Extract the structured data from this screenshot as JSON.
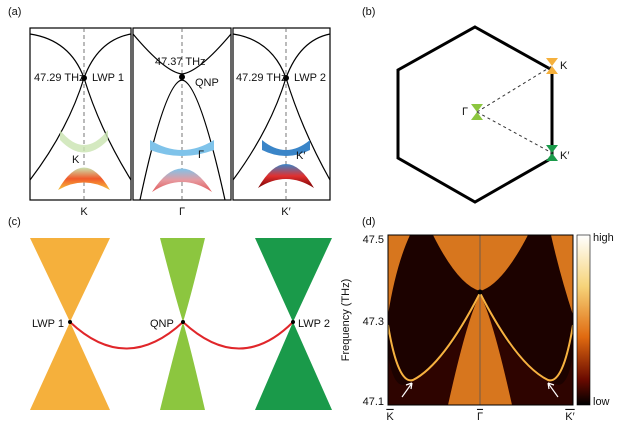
{
  "panels": [
    {
      "label": "(a)",
      "subpanels": [
        {
          "frequency": "47.29 THz",
          "point": "LWP 1",
          "inset": "K",
          "x_label": "K"
        },
        {
          "frequency": "47.37 THz",
          "point": "QNP",
          "inset": "Γ",
          "x_label": "Γ"
        },
        {
          "frequency": "47.29 THz",
          "point": "LWP 2",
          "inset": "K′",
          "x_label": "K′"
        }
      ]
    },
    {
      "label": "(b)",
      "points": [
        "K",
        "Γ",
        "K′"
      ]
    },
    {
      "label": "(c)",
      "points": [
        "LWP 1",
        "QNP",
        "LWP 2"
      ]
    },
    {
      "label": "(d)",
      "y_label": "Frequency (THz)",
      "y_ticks": [
        "47.5",
        "47.3",
        "47.1"
      ],
      "x_ticks": [
        "K",
        "Γ",
        "K′"
      ],
      "colorbar": [
        "high",
        "low"
      ]
    }
  ]
}
